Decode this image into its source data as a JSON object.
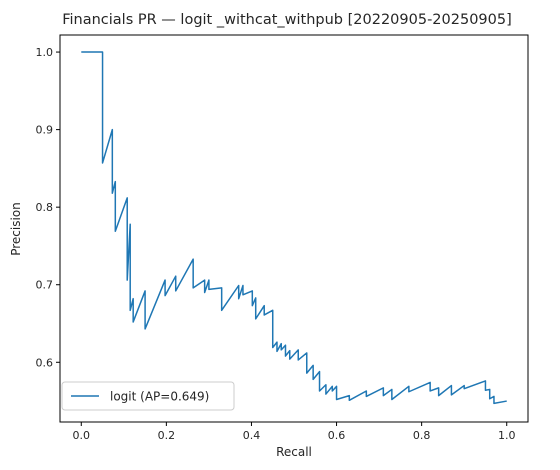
{
  "chart_data": {
    "type": "line",
    "title": "Financials PR — logit _withcat_withpub [20220905-20250905]",
    "xlabel": "Recall",
    "ylabel": "Precision",
    "xlim": [
      -0.05,
      1.05
    ],
    "ylim": [
      0.523,
      1.022
    ],
    "xticks": [
      0.0,
      0.2,
      0.4,
      0.6,
      0.8,
      1.0
    ],
    "xtick_labels": [
      "0.0",
      "0.2",
      "0.4",
      "0.6",
      "0.8",
      "1.0"
    ],
    "yticks": [
      0.6,
      0.7,
      0.8,
      0.9,
      1.0
    ],
    "ytick_labels": [
      "0.6",
      "0.7",
      "0.8",
      "0.9",
      "1.0"
    ],
    "grid": false,
    "legend_position": "lower-left",
    "series": [
      {
        "name": "logit (AP=0.649)",
        "color": "#1f77b4",
        "points": [
          [
            0.0,
            1.0
          ],
          [
            0.05,
            1.0
          ],
          [
            0.05,
            0.857
          ],
          [
            0.073,
            0.9
          ],
          [
            0.073,
            0.818
          ],
          [
            0.08,
            0.833
          ],
          [
            0.08,
            0.769
          ],
          [
            0.108,
            0.812
          ],
          [
            0.108,
            0.706
          ],
          [
            0.115,
            0.778
          ],
          [
            0.115,
            0.667
          ],
          [
            0.122,
            0.682
          ],
          [
            0.122,
            0.652
          ],
          [
            0.15,
            0.692
          ],
          [
            0.15,
            0.643
          ],
          [
            0.197,
            0.706
          ],
          [
            0.197,
            0.686
          ],
          [
            0.222,
            0.711
          ],
          [
            0.222,
            0.692
          ],
          [
            0.263,
            0.733
          ],
          [
            0.263,
            0.696
          ],
          [
            0.29,
            0.706
          ],
          [
            0.29,
            0.69
          ],
          [
            0.3,
            0.706
          ],
          [
            0.3,
            0.694
          ],
          [
            0.33,
            0.696
          ],
          [
            0.33,
            0.667
          ],
          [
            0.37,
            0.699
          ],
          [
            0.37,
            0.682
          ],
          [
            0.38,
            0.699
          ],
          [
            0.38,
            0.687
          ],
          [
            0.402,
            0.692
          ],
          [
            0.402,
            0.673
          ],
          [
            0.41,
            0.683
          ],
          [
            0.41,
            0.656
          ],
          [
            0.43,
            0.673
          ],
          [
            0.43,
            0.661
          ],
          [
            0.45,
            0.667
          ],
          [
            0.45,
            0.619
          ],
          [
            0.46,
            0.626
          ],
          [
            0.46,
            0.614
          ],
          [
            0.47,
            0.624
          ],
          [
            0.47,
            0.616
          ],
          [
            0.48,
            0.622
          ],
          [
            0.48,
            0.608
          ],
          [
            0.49,
            0.615
          ],
          [
            0.49,
            0.604
          ],
          [
            0.51,
            0.616
          ],
          [
            0.51,
            0.603
          ],
          [
            0.53,
            0.612
          ],
          [
            0.53,
            0.586
          ],
          [
            0.545,
            0.596
          ],
          [
            0.545,
            0.578
          ],
          [
            0.56,
            0.588
          ],
          [
            0.56,
            0.563
          ],
          [
            0.575,
            0.571
          ],
          [
            0.575,
            0.559
          ],
          [
            0.59,
            0.569
          ],
          [
            0.59,
            0.563
          ],
          [
            0.6,
            0.569
          ],
          [
            0.6,
            0.552
          ],
          [
            0.63,
            0.557
          ],
          [
            0.63,
            0.551
          ],
          [
            0.67,
            0.563
          ],
          [
            0.67,
            0.556
          ],
          [
            0.71,
            0.567
          ],
          [
            0.71,
            0.557
          ],
          [
            0.73,
            0.565
          ],
          [
            0.73,
            0.552
          ],
          [
            0.77,
            0.569
          ],
          [
            0.77,
            0.562
          ],
          [
            0.82,
            0.574
          ],
          [
            0.82,
            0.563
          ],
          [
            0.84,
            0.567
          ],
          [
            0.84,
            0.557
          ],
          [
            0.87,
            0.57
          ],
          [
            0.87,
            0.558
          ],
          [
            0.9,
            0.57
          ],
          [
            0.9,
            0.566
          ],
          [
            0.95,
            0.576
          ],
          [
            0.95,
            0.564
          ],
          [
            0.96,
            0.565
          ],
          [
            0.96,
            0.553
          ],
          [
            0.97,
            0.556
          ],
          [
            0.97,
            0.547
          ],
          [
            1.0,
            0.55
          ]
        ]
      }
    ]
  }
}
